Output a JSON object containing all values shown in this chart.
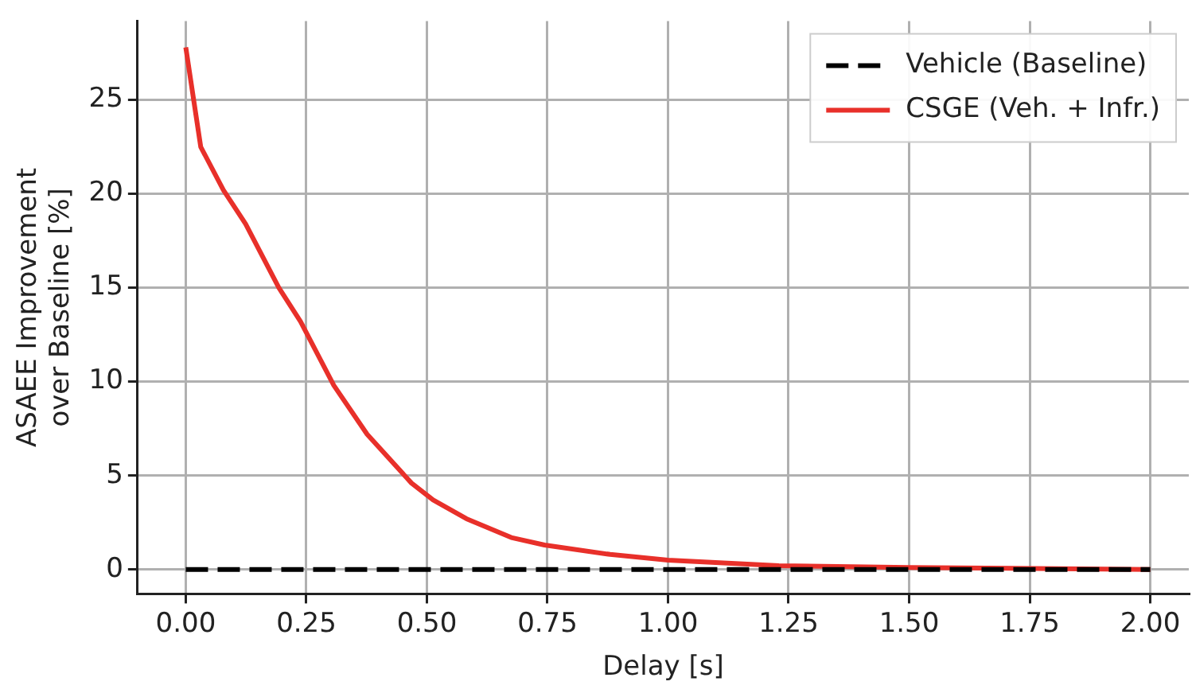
{
  "chart_data": {
    "type": "line",
    "xlabel": "Delay [s]",
    "ylabel": "ASAEE Improvement\nover Baseline [%]",
    "xlim": [
      -0.1,
      2.08
    ],
    "ylim": [
      -1.3,
      29.2
    ],
    "xticks": [
      {
        "value": 0,
        "label": "0.00"
      },
      {
        "value": 0.25,
        "label": "0.25"
      },
      {
        "value": 0.5,
        "label": "0.50"
      },
      {
        "value": 0.75,
        "label": "0.75"
      },
      {
        "value": 1,
        "label": "1.00"
      },
      {
        "value": 1.25,
        "label": "1.25"
      },
      {
        "value": 1.5,
        "label": "1.50"
      },
      {
        "value": 1.75,
        "label": "1.75"
      },
      {
        "value": 2,
        "label": "2.00"
      }
    ],
    "yticks": [
      0,
      5,
      10,
      15,
      20,
      25
    ],
    "grid": true,
    "legend": "top right",
    "marker": "none",
    "series": [
      {
        "name": "Vehicle (Baseline)",
        "color": "#000000",
        "line_style": "dashed",
        "x": [
          0,
          2
        ],
        "values": [
          0,
          0
        ]
      },
      {
        "name": "CSGE (Veh. + Infr.)",
        "color": "#e8302a",
        "line_style": "solid",
        "x": [
          0,
          0.031,
          0.078,
          0.124,
          0.193,
          0.238,
          0.307,
          0.376,
          0.468,
          0.513,
          0.582,
          0.675,
          0.744,
          0.88,
          1.0,
          1.23,
          1.5,
          2.0
        ],
        "values": [
          27.8,
          22.5,
          20.2,
          18.4,
          15.0,
          13.2,
          9.8,
          7.2,
          4.6,
          3.7,
          2.7,
          1.7,
          1.3,
          0.8,
          0.5,
          0.2,
          0.1,
          0
        ]
      }
    ]
  }
}
